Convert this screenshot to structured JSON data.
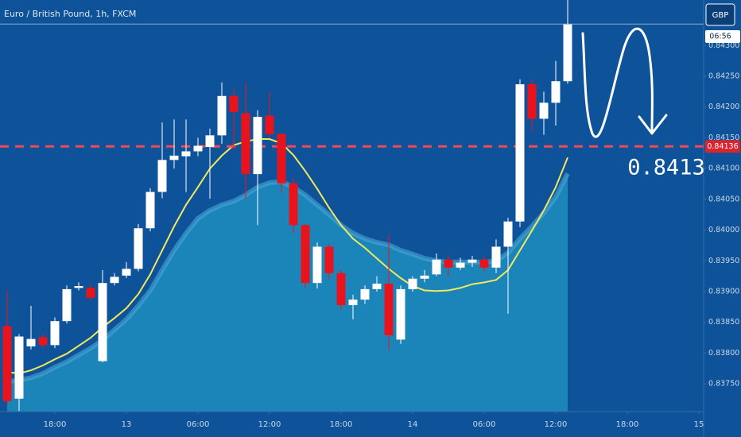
{
  "chart_data": {
    "type": "candlestick",
    "title": "Euro / British Pound, 1h, FXCM",
    "currency_button": "GBP",
    "countdown": "06:56",
    "annotation": "0.8413",
    "up_color": "#ffffff",
    "down_color": "#e8141d",
    "x": [
      0,
      1,
      2,
      3,
      4,
      5,
      6,
      7,
      8,
      9,
      10,
      11,
      12,
      13,
      14,
      15,
      16,
      17,
      18,
      19,
      20,
      21,
      22,
      23,
      24,
      25,
      26,
      27,
      28,
      29,
      30,
      31,
      32,
      33,
      34,
      35,
      36,
      37,
      38,
      39,
      40,
      41,
      42,
      43,
      44,
      45,
      46,
      47
    ],
    "open": [
      0.83844,
      0.83726,
      0.83811,
      0.83826,
      0.83813,
      0.83852,
      0.83906,
      0.83906,
      0.83787,
      0.83914,
      0.83926,
      0.83937,
      0.84003,
      0.84062,
      0.84114,
      0.8412,
      0.84128,
      0.84135,
      0.84154,
      0.84218,
      0.8419,
      0.84091,
      0.84186,
      0.84156,
      0.84076,
      0.84008,
      0.83914,
      0.83973,
      0.8393,
      0.83878,
      0.83887,
      0.83904,
      0.83913,
      0.83822,
      0.83904,
      0.83921,
      0.83928,
      0.83952,
      0.83939,
      0.83947,
      0.83952,
      0.83939,
      0.83973,
      0.84014,
      0.84237,
      0.84181,
      0.84207,
      0.84242
    ],
    "high": [
      0.83902,
      0.83831,
      0.83877,
      0.83832,
      0.83858,
      0.8391,
      0.83915,
      0.83912,
      0.83935,
      0.8393,
      0.83948,
      0.8401,
      0.84068,
      0.84175,
      0.8418,
      0.8418,
      0.8415,
      0.84165,
      0.8424,
      0.8423,
      0.8424,
      0.84195,
      0.84225,
      0.8416,
      0.84085,
      0.8401,
      0.8398,
      0.83978,
      0.83935,
      0.83895,
      0.8391,
      0.83925,
      0.83993,
      0.8391,
      0.83925,
      0.83935,
      0.83962,
      0.8396,
      0.83955,
      0.83958,
      0.83958,
      0.83985,
      0.8402,
      0.84245,
      0.84245,
      0.84225,
      0.84275,
      0.84374
    ],
    "low": [
      0.83715,
      0.83706,
      0.83806,
      0.83808,
      0.83808,
      0.83848,
      0.83902,
      0.83885,
      0.83785,
      0.8391,
      0.83922,
      0.83933,
      0.83998,
      0.84052,
      0.841,
      0.84062,
      0.8412,
      0.84051,
      0.8414,
      0.8413,
      0.84051,
      0.84008,
      0.8415,
      0.8406,
      0.83995,
      0.83905,
      0.83905,
      0.8392,
      0.8387,
      0.83855,
      0.8388,
      0.839,
      0.83805,
      0.83815,
      0.839,
      0.83915,
      0.83925,
      0.83925,
      0.83935,
      0.8394,
      0.83932,
      0.8393,
      0.83864,
      0.84005,
      0.8416,
      0.84155,
      0.8417,
      0.84238
    ],
    "close": [
      0.83722,
      0.83827,
      0.83823,
      0.83813,
      0.83852,
      0.83904,
      0.83909,
      0.8389,
      0.83914,
      0.83924,
      0.83937,
      0.84003,
      0.84062,
      0.84114,
      0.84121,
      0.84128,
      0.84137,
      0.84154,
      0.84218,
      0.84192,
      0.84091,
      0.84184,
      0.84156,
      0.84076,
      0.84008,
      0.83914,
      0.83973,
      0.8393,
      0.83878,
      0.83887,
      0.83904,
      0.83913,
      0.83829,
      0.83904,
      0.83921,
      0.83926,
      0.83952,
      0.83939,
      0.83947,
      0.83952,
      0.83939,
      0.83973,
      0.84014,
      0.84237,
      0.84181,
      0.84207,
      0.84242,
      0.84335
    ],
    "overlays": [
      {
        "type": "area",
        "color": "#1d8bbd",
        "values": [
          0.83754,
          0.83756,
          0.8376,
          0.83767,
          0.83777,
          0.83786,
          0.83797,
          0.83808,
          0.83821,
          0.83838,
          0.83855,
          0.83877,
          0.83902,
          0.83935,
          0.83967,
          0.83995,
          0.84019,
          0.84032,
          0.84041,
          0.84047,
          0.84057,
          0.8407,
          0.84077,
          0.84079,
          0.8407,
          0.84057,
          0.84041,
          0.84025,
          0.84008,
          0.83995,
          0.83986,
          0.8398,
          0.83976,
          0.83967,
          0.83961,
          0.83954,
          0.8395,
          0.83948,
          0.83948,
          0.83948,
          0.83948,
          0.8395,
          0.83963,
          0.83986,
          0.84006,
          0.84028,
          0.84054,
          0.84092
        ]
      },
      {
        "type": "line",
        "color": "#f2e85c",
        "values": [
          0.83769,
          0.83767,
          0.83772,
          0.8378,
          0.8379,
          0.83799,
          0.83812,
          0.83825,
          0.83842,
          0.83857,
          0.83873,
          0.83896,
          0.83928,
          0.83967,
          0.84006,
          0.84041,
          0.8407,
          0.841,
          0.84121,
          0.84138,
          0.84144,
          0.84148,
          0.84148,
          0.84141,
          0.84122,
          0.84096,
          0.84067,
          0.84036,
          0.84008,
          0.83986,
          0.83971,
          0.83954,
          0.83937,
          0.83922,
          0.83909,
          0.83902,
          0.83901,
          0.83902,
          0.83906,
          0.83912,
          0.83915,
          0.83919,
          0.83935,
          0.83967,
          0.83999,
          0.84032,
          0.8407,
          0.84118
        ]
      }
    ],
    "price_line": {
      "value": 0.84136,
      "color": "#ef4a55"
    },
    "xlim": [
      -0.6,
      58.4
    ],
    "ylim": [
      0.83705,
      0.84374
    ],
    "xticks": [
      {
        "value": 4,
        "label": "18:00"
      },
      {
        "value": 10,
        "label": "13"
      },
      {
        "value": 16,
        "label": "06:00"
      },
      {
        "value": 22,
        "label": "12:00"
      },
      {
        "value": 28,
        "label": "18:00"
      },
      {
        "value": 34,
        "label": "14"
      },
      {
        "value": 40,
        "label": "06:00"
      },
      {
        "value": 46,
        "label": "12:00"
      },
      {
        "value": 52,
        "label": "18:00"
      },
      {
        "value": 58,
        "label": "15"
      }
    ],
    "yticks": [
      {
        "value": 0.8375,
        "label": "0.83750"
      },
      {
        "value": 0.838,
        "label": "0.83800"
      },
      {
        "value": 0.8385,
        "label": "0.83850"
      },
      {
        "value": 0.839,
        "label": "0.83900"
      },
      {
        "value": 0.8395,
        "label": "0.83950"
      },
      {
        "value": 0.84,
        "label": "0.84000"
      },
      {
        "value": 0.8405,
        "label": "0.84050"
      },
      {
        "value": 0.841,
        "label": "0.84100"
      },
      {
        "value": 0.8415,
        "label": "0.84150"
      },
      {
        "value": 0.842,
        "label": "0.84200"
      },
      {
        "value": 0.8425,
        "label": "0.84250"
      },
      {
        "value": 0.843,
        "label": "0.84300"
      }
    ]
  }
}
